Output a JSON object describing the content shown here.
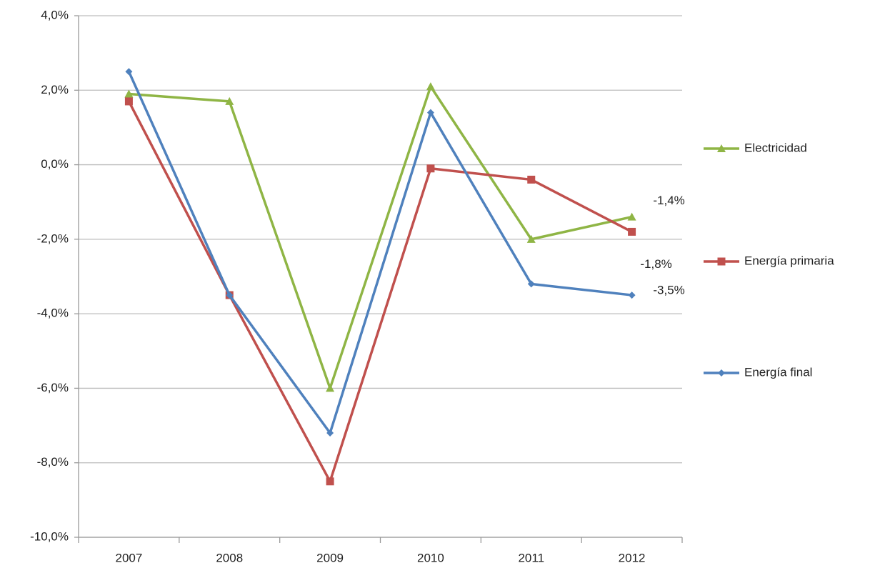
{
  "chart_data": {
    "type": "line",
    "categories": [
      "2007",
      "2008",
      "2009",
      "2010",
      "2011",
      "2012"
    ],
    "series": [
      {
        "name": "Electricidad",
        "color": "#8fb545",
        "marker": "triangle",
        "values": [
          1.9,
          1.7,
          -6.0,
          2.1,
          -2.0,
          -1.4
        ],
        "value_labels": [
          null,
          null,
          null,
          null,
          null,
          "-1,4%"
        ]
      },
      {
        "name": "Energía primaria",
        "color": "#c0504d",
        "marker": "square",
        "values": [
          1.7,
          -3.5,
          -8.5,
          -0.1,
          -0.4,
          -1.8
        ],
        "value_labels": [
          null,
          null,
          null,
          null,
          null,
          "-1,8%"
        ]
      },
      {
        "name": "Energía final",
        "color": "#4f81bd",
        "marker": "diamond",
        "values": [
          2.5,
          -3.5,
          -7.2,
          1.4,
          -3.2,
          -3.5
        ],
        "value_labels": [
          null,
          null,
          null,
          null,
          null,
          "-3,5%"
        ]
      }
    ],
    "ylim": [
      -10,
      4
    ],
    "yticks": [
      {
        "value": -10,
        "label": "-10,0%"
      },
      {
        "value": -8,
        "label": "-8,0%"
      },
      {
        "value": -6,
        "label": "-6,0%"
      },
      {
        "value": -4,
        "label": "-4,0%"
      },
      {
        "value": -2,
        "label": "-2,0%"
      },
      {
        "value": 0,
        "label": "0,0%"
      },
      {
        "value": 2,
        "label": "2,0%"
      },
      {
        "value": 4,
        "label": "4,0%"
      }
    ],
    "grid": true,
    "legend": "right"
  }
}
